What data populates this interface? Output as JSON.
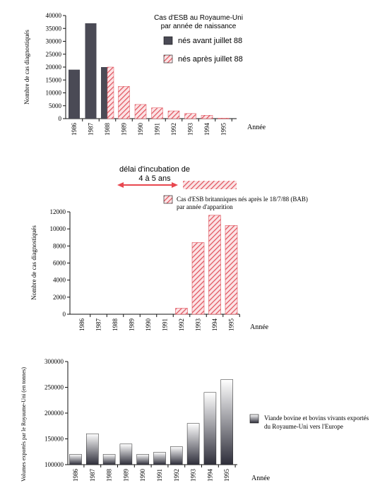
{
  "colors": {
    "dark_bar": "#4a4a55",
    "hatch_red": "#e0505a",
    "hatch_bg": "#fbe3e5",
    "arrow": "#e8474f",
    "grad_top": "#ffffff",
    "grad_bottom": "#2e2e3a"
  },
  "chart_data": [
    {
      "type": "bar",
      "title_line1": "Cas d'ESB au Royaume-Uni",
      "title_line2": "par année de naissance",
      "ylabel": "Nombre de cas diagnostiqués",
      "xlabel": "Année",
      "ylim": [
        0,
        40000
      ],
      "yticks": [
        "0",
        "5000",
        "10000",
        "15000",
        "20000",
        "25000",
        "30000",
        "35000",
        "40000"
      ],
      "categories": [
        "1986",
        "1987",
        "1988",
        "1989",
        "1990",
        "1991",
        "1992",
        "1993",
        "1994",
        "1995"
      ],
      "legend": [
        "nés avant juillet 88",
        "nés après juillet 88"
      ],
      "legend_position": "top-right",
      "series": [
        {
          "name": "nés avant juillet 88",
          "values": [
            19000,
            37000,
            20000,
            0,
            0,
            0,
            0,
            0,
            0,
            0
          ]
        },
        {
          "name": "nés après juillet 88",
          "values": [
            0,
            0,
            20000,
            12500,
            5500,
            4200,
            3000,
            2000,
            1300,
            200
          ]
        }
      ]
    },
    {
      "type": "bar",
      "annotation_line1": "délai d'incubation de",
      "annotation_line2": "4 à 5 ans",
      "legend_line1": "Cas d'ESB britanniques nés après le 18/7/88 (BAB)",
      "legend_line2": "par année d'apparition",
      "ylabel": "Nombre de cas diagnostiqués",
      "xlabel": "Année",
      "ylim": [
        0,
        12000
      ],
      "yticks": [
        "0",
        "2000",
        "4000",
        "6000",
        "8000",
        "10000",
        "12000"
      ],
      "categories": [
        "1986",
        "1987",
        "1988",
        "1989",
        "1990",
        "1991",
        "1992",
        "1993",
        "1994",
        "1995"
      ],
      "values": [
        0,
        0,
        0,
        0,
        0,
        0,
        700,
        8400,
        11600,
        10400
      ]
    },
    {
      "type": "bar",
      "ylabel": "Volumes exportés par le Royaume-Uni (en tonnes)",
      "xlabel": "Année",
      "ylim": [
        100000,
        300000
      ],
      "yticks": [
        "100000",
        "150000",
        "200000",
        "250000",
        "300000"
      ],
      "categories": [
        "1986",
        "1987",
        "1988",
        "1989",
        "1990",
        "1991",
        "1992",
        "1993",
        "1994",
        "1995"
      ],
      "legend_line1": "Viande bovine et bovins vivants exportés",
      "legend_line2": "du Royaume-Uni vers l'Europe",
      "values": [
        120000,
        160000,
        120000,
        140000,
        120000,
        124000,
        135000,
        180000,
        240000,
        265000
      ]
    }
  ]
}
